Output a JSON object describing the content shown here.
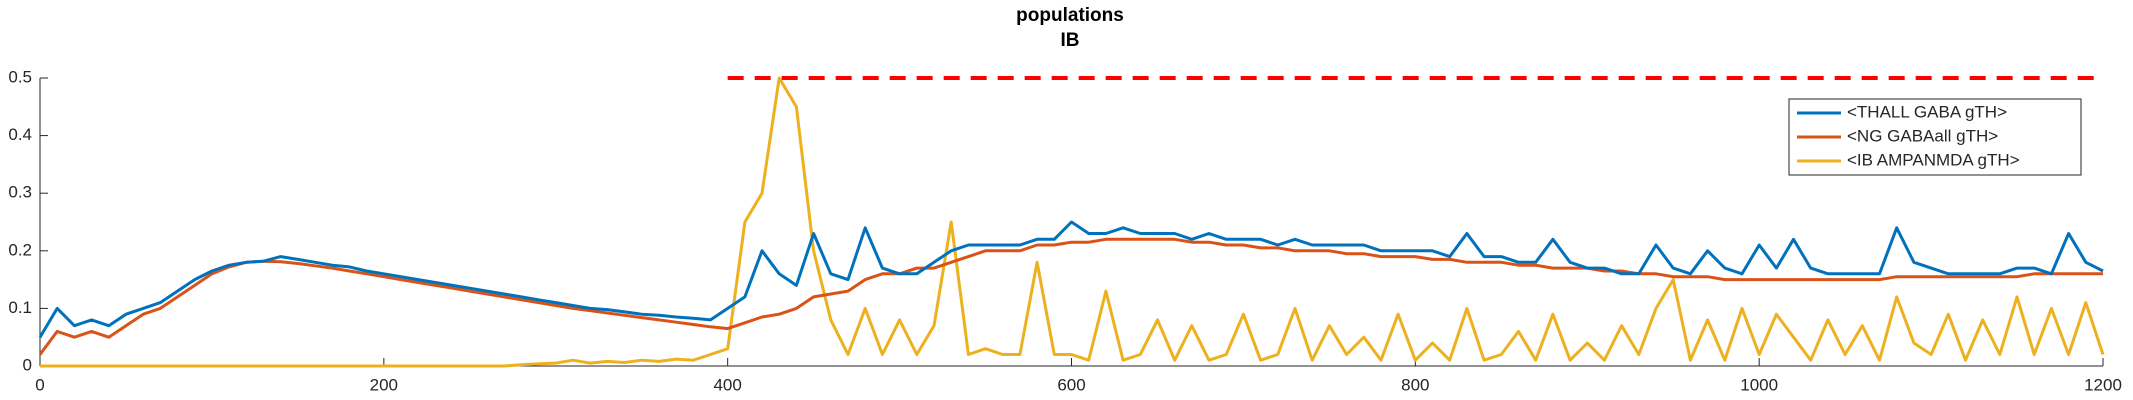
{
  "chart_data": {
    "type": "line",
    "title": "populations",
    "subtitle": "IB",
    "x": [
      0,
      10,
      20,
      30,
      40,
      50,
      60,
      70,
      80,
      90,
      100,
      110,
      120,
      130,
      140,
      150,
      160,
      170,
      180,
      190,
      200,
      210,
      220,
      230,
      240,
      250,
      260,
      270,
      280,
      290,
      300,
      310,
      320,
      330,
      340,
      350,
      360,
      370,
      380,
      390,
      400,
      410,
      420,
      430,
      440,
      450,
      460,
      470,
      480,
      490,
      500,
      510,
      520,
      530,
      540,
      550,
      560,
      570,
      580,
      590,
      600,
      610,
      620,
      630,
      640,
      650,
      660,
      670,
      680,
      690,
      700,
      710,
      720,
      730,
      740,
      750,
      760,
      770,
      780,
      790,
      800,
      810,
      820,
      830,
      840,
      850,
      860,
      870,
      880,
      890,
      900,
      910,
      920,
      930,
      940,
      950,
      960,
      970,
      980,
      990,
      1000,
      1010,
      1020,
      1030,
      1040,
      1050,
      1060,
      1070,
      1080,
      1090,
      1100,
      1110,
      1120,
      1130,
      1140,
      1150,
      1160,
      1170,
      1180,
      1190,
      1200
    ],
    "series": [
      {
        "name": "<THALL GABA gTH>",
        "color": "#0072bd",
        "values": [
          0.05,
          0.1,
          0.07,
          0.08,
          0.07,
          0.09,
          0.1,
          0.11,
          0.13,
          0.15,
          0.165,
          0.175,
          0.18,
          0.182,
          0.19,
          0.185,
          0.18,
          0.175,
          0.172,
          0.165,
          0.16,
          0.155,
          0.15,
          0.145,
          0.14,
          0.135,
          0.13,
          0.125,
          0.12,
          0.115,
          0.11,
          0.105,
          0.1,
          0.098,
          0.094,
          0.09,
          0.088,
          0.085,
          0.083,
          0.08,
          0.1,
          0.12,
          0.2,
          0.16,
          0.14,
          0.23,
          0.16,
          0.15,
          0.24,
          0.17,
          0.16,
          0.16,
          0.18,
          0.2,
          0.21,
          0.21,
          0.21,
          0.21,
          0.22,
          0.22,
          0.25,
          0.23,
          0.23,
          0.24,
          0.23,
          0.23,
          0.23,
          0.22,
          0.23,
          0.22,
          0.22,
          0.22,
          0.21,
          0.22,
          0.21,
          0.21,
          0.21,
          0.21,
          0.2,
          0.2,
          0.2,
          0.2,
          0.19,
          0.23,
          0.19,
          0.19,
          0.18,
          0.18,
          0.22,
          0.18,
          0.17,
          0.17,
          0.16,
          0.16,
          0.21,
          0.17,
          0.16,
          0.2,
          0.17,
          0.16,
          0.21,
          0.17,
          0.22,
          0.17,
          0.16,
          0.16,
          0.16,
          0.16,
          0.24,
          0.18,
          0.17,
          0.16,
          0.16,
          0.16,
          0.16,
          0.17,
          0.17,
          0.16,
          0.23,
          0.18,
          0.165
        ]
      },
      {
        "name": "<NG GABAall gTH>",
        "color": "#d95319",
        "values": [
          0.02,
          0.06,
          0.05,
          0.06,
          0.05,
          0.07,
          0.09,
          0.1,
          0.12,
          0.14,
          0.16,
          0.172,
          0.18,
          0.182,
          0.181,
          0.178,
          0.174,
          0.17,
          0.165,
          0.16,
          0.155,
          0.15,
          0.145,
          0.14,
          0.135,
          0.13,
          0.125,
          0.12,
          0.115,
          0.11,
          0.105,
          0.1,
          0.096,
          0.092,
          0.088,
          0.084,
          0.08,
          0.076,
          0.072,
          0.068,
          0.065,
          0.075,
          0.085,
          0.09,
          0.1,
          0.12,
          0.125,
          0.13,
          0.15,
          0.16,
          0.16,
          0.17,
          0.17,
          0.18,
          0.19,
          0.2,
          0.2,
          0.2,
          0.21,
          0.21,
          0.215,
          0.215,
          0.22,
          0.22,
          0.22,
          0.22,
          0.22,
          0.215,
          0.215,
          0.21,
          0.21,
          0.205,
          0.205,
          0.2,
          0.2,
          0.2,
          0.195,
          0.195,
          0.19,
          0.19,
          0.19,
          0.185,
          0.185,
          0.18,
          0.18,
          0.18,
          0.175,
          0.175,
          0.17,
          0.17,
          0.17,
          0.165,
          0.165,
          0.16,
          0.16,
          0.155,
          0.155,
          0.155,
          0.15,
          0.15,
          0.15,
          0.15,
          0.15,
          0.15,
          0.15,
          0.15,
          0.15,
          0.15,
          0.155,
          0.155,
          0.155,
          0.155,
          0.155,
          0.155,
          0.155,
          0.155,
          0.16,
          0.16,
          0.16,
          0.16,
          0.16
        ]
      },
      {
        "name": "<IB AMPANMDA gTH>",
        "color": "#edb120",
        "values": [
          0,
          0,
          0,
          0,
          0,
          0,
          0,
          0,
          0,
          0,
          0,
          0,
          0,
          0,
          0,
          0,
          0,
          0,
          0,
          0,
          0,
          0,
          0,
          0,
          0,
          0,
          0,
          0,
          0.002,
          0.004,
          0.005,
          0.01,
          0.005,
          0.008,
          0.006,
          0.01,
          0.008,
          0.012,
          0.01,
          0.02,
          0.03,
          0.25,
          0.3,
          0.5,
          0.45,
          0.2,
          0.08,
          0.02,
          0.1,
          0.02,
          0.08,
          0.02,
          0.07,
          0.25,
          0.02,
          0.03,
          0.02,
          0.02,
          0.18,
          0.02,
          0.02,
          0.01,
          0.13,
          0.01,
          0.02,
          0.08,
          0.01,
          0.07,
          0.01,
          0.02,
          0.09,
          0.01,
          0.02,
          0.1,
          0.01,
          0.07,
          0.02,
          0.05,
          0.01,
          0.09,
          0.01,
          0.04,
          0.01,
          0.1,
          0.01,
          0.02,
          0.06,
          0.01,
          0.09,
          0.01,
          0.04,
          0.01,
          0.07,
          0.02,
          0.1,
          0.15,
          0.01,
          0.08,
          0.01,
          0.1,
          0.02,
          0.09,
          0.05,
          0.01,
          0.08,
          0.02,
          0.07,
          0.01,
          0.12,
          0.04,
          0.02,
          0.09,
          0.01,
          0.08,
          0.02,
          0.12,
          0.02,
          0.1,
          0.02,
          0.11,
          0.02
        ]
      }
    ],
    "xlim": [
      0,
      1200
    ],
    "xticks": [
      0,
      200,
      400,
      600,
      800,
      1000,
      1200
    ],
    "ylim": [
      0,
      0.5
    ],
    "yticks": [
      0,
      0.1,
      0.2,
      0.3,
      0.4,
      0.5
    ],
    "reference_line": {
      "y": 0.5,
      "x": [
        400,
        1200
      ],
      "color": "#ff0000"
    },
    "legend": "upper-right"
  }
}
